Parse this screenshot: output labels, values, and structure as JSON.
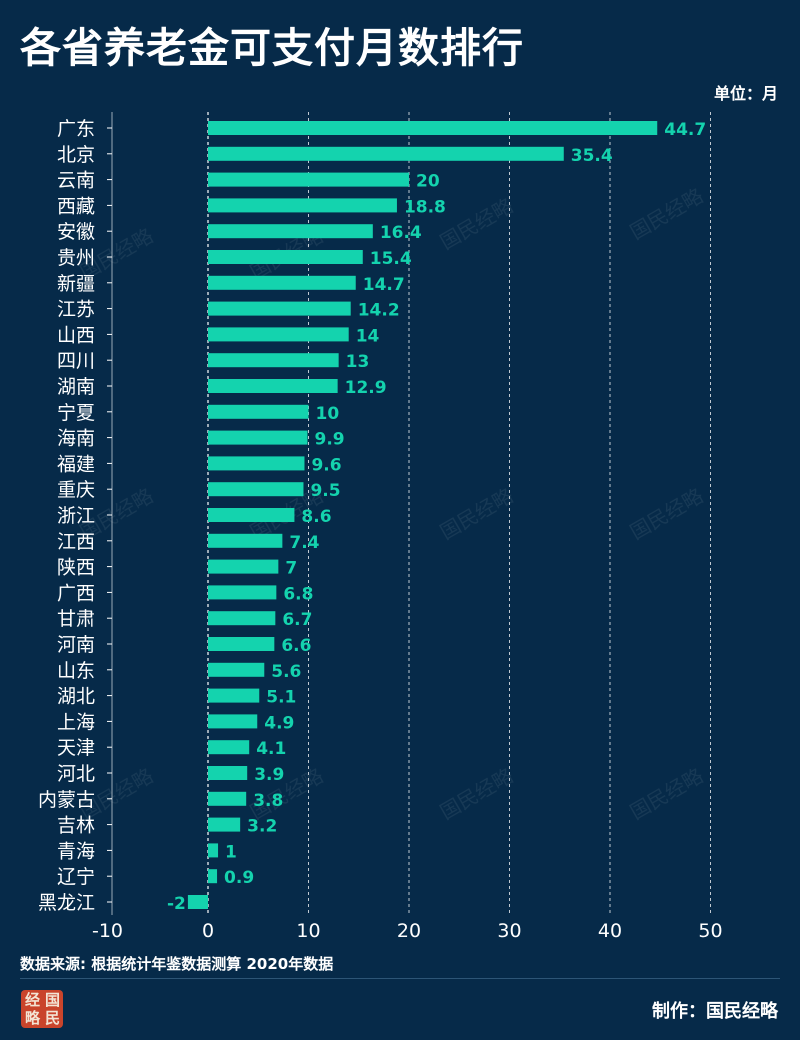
{
  "title": "各省养老金可支付月数排行",
  "unit_label": "单位：月",
  "source_text": "数据来源: 根据统计年鉴数据测算 2020年数据",
  "credit_text": "制作：国民经略",
  "logo_chars": [
    "经",
    "国",
    "略",
    "民"
  ],
  "watermark_text": "国民经略",
  "colors": {
    "background": "#062a49",
    "bar": "#14d3ae",
    "label": "#14d3ae",
    "text": "#ffffff",
    "logo": "#c9442b"
  },
  "chart_data": {
    "type": "bar",
    "orientation": "horizontal",
    "title": "各省养老金可支付月数排行",
    "xlabel": "",
    "ylabel": "",
    "unit": "单位：月",
    "categories": [
      "广东",
      "北京",
      "云南",
      "西藏",
      "安徽",
      "贵州",
      "新疆",
      "江苏",
      "山西",
      "四川",
      "湖南",
      "宁夏",
      "海南",
      "福建",
      "重庆",
      "浙江",
      "江西",
      "陕西",
      "广西",
      "甘肃",
      "河南",
      "山东",
      "湖北",
      "上海",
      "天津",
      "河北",
      "内蒙古",
      "吉林",
      "青海",
      "辽宁",
      "黑龙江"
    ],
    "values": [
      44.7,
      35.4,
      20,
      18.8,
      16.4,
      15.4,
      14.7,
      14.2,
      14,
      13,
      12.9,
      10,
      9.9,
      9.6,
      9.5,
      8.6,
      7.4,
      7,
      6.8,
      6.7,
      6.6,
      5.6,
      5.1,
      4.9,
      4.1,
      3.9,
      3.8,
      3.2,
      1,
      0.9,
      -2
    ],
    "value_labels": [
      "44.7",
      "35.4",
      "20",
      "18.8",
      "16.4",
      "15.4",
      "14.7",
      "14.2",
      "14",
      "13",
      "12.9",
      "10",
      "9.9",
      "9.6",
      "9.5",
      "8.6",
      "7.4",
      "7",
      "6.8",
      "6.7",
      "6.6",
      "5.6",
      "5.1",
      "4.9",
      "4.1",
      "3.9",
      "3.8",
      "3.2",
      "1",
      "0.9",
      "-2"
    ],
    "xlim": [
      -10,
      50
    ],
    "xticks": [
      -10,
      0,
      10,
      20,
      30,
      40,
      50
    ],
    "vertical_gridlines": "dashed",
    "legend": "none"
  }
}
